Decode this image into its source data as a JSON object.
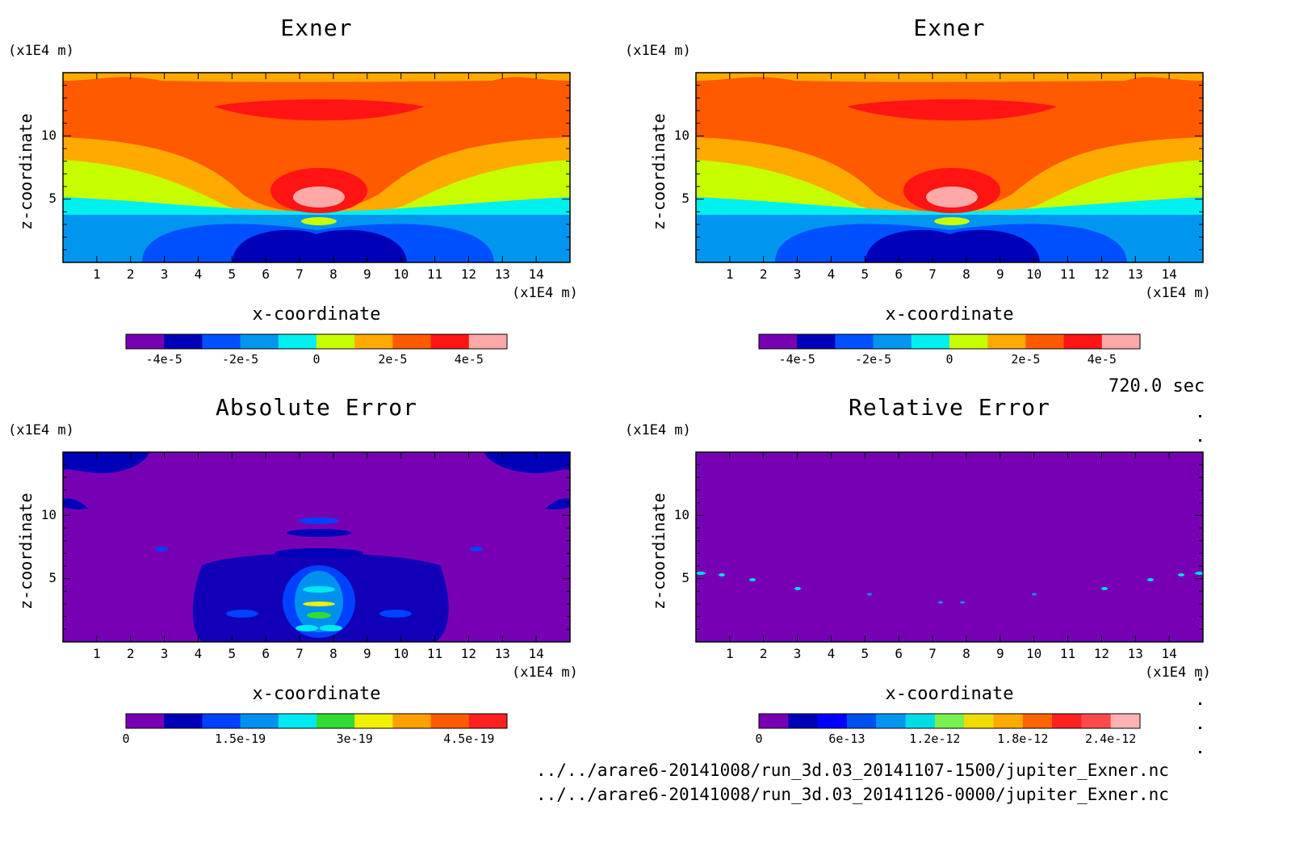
{
  "panels": [
    {
      "title": "Exner",
      "y_unit": "(x1E4 m)",
      "x_unit": "(x1E4 m)",
      "ylabel": "z-coordinate",
      "xlabel": "x-coordinate",
      "x_ticks": [
        "1",
        "2",
        "3",
        "4",
        "5",
        "6",
        "7",
        "8",
        "9",
        "10",
        "11",
        "12",
        "13",
        "14"
      ],
      "y_ticks": [
        "10",
        "5"
      ],
      "colorbar": {
        "colors": [
          "#7800b4",
          "#0000b8",
          "#0050ff",
          "#0096f0",
          "#00f0f0",
          "#c8ff00",
          "#ffaa00",
          "#ff5a00",
          "#ff1414",
          "#ffa8a8"
        ],
        "labels": [
          "-4e-5",
          "-2e-5",
          "0",
          "2e-5",
          "4e-5"
        ]
      }
    },
    {
      "title": "Exner",
      "y_unit": "(x1E4 m)",
      "x_unit": "(x1E4 m)",
      "ylabel": "z-coordinate",
      "xlabel": "x-coordinate",
      "x_ticks": [
        "1",
        "2",
        "3",
        "4",
        "5",
        "6",
        "7",
        "8",
        "9",
        "10",
        "11",
        "12",
        "13",
        "14"
      ],
      "y_ticks": [
        "10",
        "5"
      ],
      "colorbar": {
        "colors": [
          "#7800b4",
          "#0000b8",
          "#0050ff",
          "#0096f0",
          "#00f0f0",
          "#c8ff00",
          "#ffaa00",
          "#ff5a00",
          "#ff1414",
          "#ffa8a8"
        ],
        "labels": [
          "-4e-5",
          "-2e-5",
          "0",
          "2e-5",
          "4e-5"
        ]
      }
    },
    {
      "title": "Absolute Error",
      "y_unit": "(x1E4 m)",
      "x_unit": "(x1E4 m)",
      "ylabel": "z-coordinate",
      "xlabel": "x-coordinate",
      "x_ticks": [
        "1",
        "2",
        "3",
        "4",
        "5",
        "6",
        "7",
        "8",
        "9",
        "10",
        "11",
        "12",
        "13",
        "14"
      ],
      "y_ticks": [
        "10",
        "5"
      ],
      "colorbar": {
        "colors": [
          "#7800b4",
          "#0000b8",
          "#0040ff",
          "#0090f0",
          "#00e8f0",
          "#32dc32",
          "#f0f000",
          "#ffa000",
          "#ff5a00",
          "#ff2020"
        ],
        "labels": [
          "0",
          "1.5e-19",
          "3e-19",
          "4.5e-19"
        ]
      }
    },
    {
      "title": "Relative Error",
      "y_unit": "(x1E4 m)",
      "x_unit": "(x1E4 m)",
      "ylabel": "z-coordinate",
      "xlabel": "x-coordinate",
      "x_ticks": [
        "1",
        "2",
        "3",
        "4",
        "5",
        "6",
        "7",
        "8",
        "9",
        "10",
        "11",
        "12",
        "13",
        "14"
      ],
      "y_ticks": [
        "10",
        "5"
      ],
      "colorbar": {
        "colors": [
          "#7800b4",
          "#0000b8",
          "#0000ff",
          "#0050f0",
          "#0096f0",
          "#00dce6",
          "#78f050",
          "#f0dc00",
          "#ffaa00",
          "#ff6400",
          "#ff2020",
          "#ff4a4a",
          "#ffb0b0"
        ],
        "labels": [
          "0",
          "6e-13",
          "1.2e-12",
          "1.8e-12",
          "2.4e-12"
        ]
      }
    }
  ],
  "time_label": "720.0 sec",
  "files": [
    "../../arare6-20141008/run_3d.03_20141107-1500/jupiter_Exner.nc",
    "../../arare6-20141008/run_3d.03_20141126-0000/jupiter_Exner.nc"
  ],
  "chart_data": [
    {
      "type": "heatmap",
      "title": "Exner",
      "xlabel": "x-coordinate",
      "ylabel": "z-coordinate",
      "x_unit": "(x1E4 m)",
      "y_unit": "(x1E4 m)",
      "xlim": [
        0,
        15
      ],
      "ylim": [
        0,
        15
      ],
      "colorbar_ticks": [
        "-4e-5",
        "-2e-5",
        "0",
        "2e-5",
        "4e-5"
      ]
    },
    {
      "type": "heatmap",
      "title": "Exner",
      "xlabel": "x-coordinate",
      "ylabel": "z-coordinate",
      "x_unit": "(x1E4 m)",
      "y_unit": "(x1E4 m)",
      "xlim": [
        0,
        15
      ],
      "ylim": [
        0,
        15
      ],
      "colorbar_ticks": [
        "-4e-5",
        "-2e-5",
        "0",
        "2e-5",
        "4e-5"
      ]
    },
    {
      "type": "heatmap",
      "title": "Absolute Error",
      "xlabel": "x-coordinate",
      "ylabel": "z-coordinate",
      "x_unit": "(x1E4 m)",
      "y_unit": "(x1E4 m)",
      "xlim": [
        0,
        15
      ],
      "ylim": [
        0,
        15
      ],
      "colorbar_ticks": [
        "0",
        "1.5e-19",
        "3e-19",
        "4.5e-19"
      ]
    },
    {
      "type": "heatmap",
      "title": "Relative Error",
      "xlabel": "x-coordinate",
      "ylabel": "z-coordinate",
      "x_unit": "(x1E4 m)",
      "y_unit": "(x1E4 m)",
      "xlim": [
        0,
        15
      ],
      "ylim": [
        0,
        15
      ],
      "colorbar_ticks": [
        "0",
        "6e-13",
        "1.2e-12",
        "1.8e-12",
        "2.4e-12"
      ]
    }
  ]
}
